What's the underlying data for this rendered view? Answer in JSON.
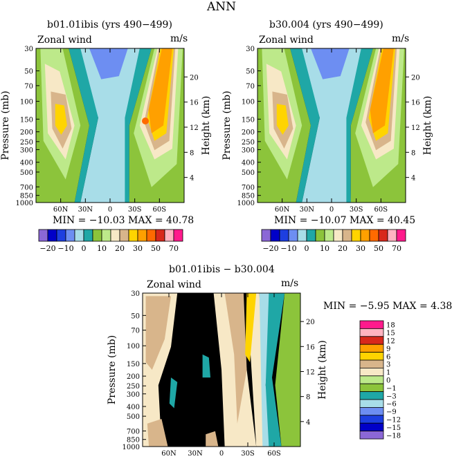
{
  "figure_title": "ANN",
  "colors": {
    "c-20": "#8b67d6",
    "c-15": "#0000c8",
    "c-10": "#1d3fe0",
    "c-5": "#6d8ef2",
    "c0": "#a8dde8",
    "c5": "#1fa7a6",
    "c10": "#8cc43b",
    "c15": "#bde98a",
    "c20": "#f7e8c6",
    "c25": "#d8b58b",
    "c30": "#ffd400",
    "c40": "#ffa000",
    "c50": "#ff6a00",
    "c60": "#d8281c",
    "c65": "#ffb3c1",
    "c70": "#ff1a8c"
  },
  "chart_data": [
    {
      "type": "contour",
      "title": "b01.01ibis (yrs 490−499)",
      "left_label": "Zonal wind",
      "right_label": "m/s",
      "ylabel": "Pressure (mb)",
      "y2label": "Height (km)",
      "y_ticks": [
        "30",
        "50",
        "70",
        "100",
        "150",
        "200",
        "250",
        "300",
        "400",
        "500",
        "700",
        "850",
        "1000"
      ],
      "y2_ticks": [
        "20",
        "16",
        "12",
        "8",
        "4"
      ],
      "x_ticks": [
        "60N",
        "30N",
        "0",
        "30S",
        "60S"
      ],
      "stats": "MIN = −10.03   MAX =  40.78",
      "min": -10.03,
      "max": 40.78,
      "colorbar_labels": [
        "−20",
        "−10",
        "0",
        "10",
        "20",
        "30",
        "50",
        "70"
      ]
    },
    {
      "type": "contour",
      "title": "b30.004 (yrs 490−499)",
      "left_label": "Zonal wind",
      "right_label": "m/s",
      "ylabel": "Pressure (mb)",
      "y2label": "Height (km)",
      "y_ticks": [
        "30",
        "50",
        "70",
        "100",
        "150",
        "200",
        "250",
        "300",
        "400",
        "500",
        "700",
        "850",
        "1000"
      ],
      "y2_ticks": [
        "20",
        "16",
        "12",
        "8",
        "4"
      ],
      "x_ticks": [
        "60N",
        "30N",
        "0",
        "30S",
        "60S"
      ],
      "stats": "MIN = −10.07   MAX =  40.45",
      "min": -10.07,
      "max": 40.45,
      "colorbar_labels": [
        "−20",
        "−10",
        "0",
        "10",
        "20",
        "30",
        "50",
        "70"
      ]
    },
    {
      "type": "contour",
      "title": "b01.01ibis − b30.004",
      "left_label": "Zonal wind",
      "right_label": "m/s",
      "ylabel": "Pressure (mb)",
      "y2label": "Height (km)",
      "y_ticks": [
        "30",
        "50",
        "70",
        "100",
        "150",
        "200",
        "250",
        "300",
        "400",
        "500",
        "700",
        "850",
        "1000"
      ],
      "y2_ticks": [
        "20",
        "16",
        "12",
        "8",
        "4"
      ],
      "x_ticks": [
        "60N",
        "30N",
        "0",
        "30S",
        "60S"
      ],
      "stats": "MIN =  −5.95  MAX =    4.38",
      "min": -5.95,
      "max": 4.38,
      "colorbar_labels": [
        "18",
        "15",
        "12",
        "9",
        "6",
        "3",
        "1",
        "0",
        "−1",
        "−3",
        "−6",
        "−9",
        "−12",
        "−15",
        "−18"
      ]
    }
  ]
}
